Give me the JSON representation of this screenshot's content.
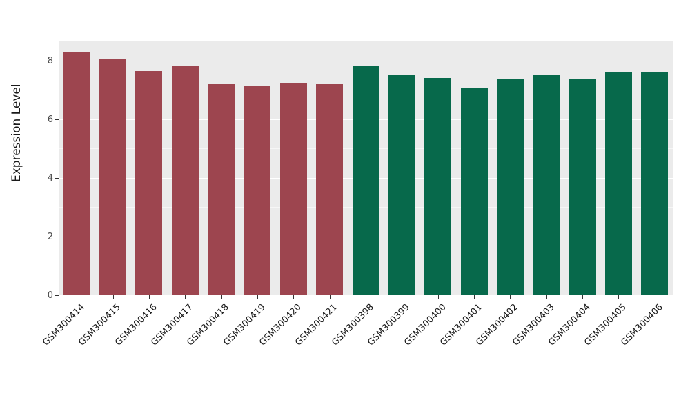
{
  "figure": {
    "background": "#ffffff"
  },
  "chart_data": {
    "type": "bar",
    "title": "",
    "xlabel": "",
    "ylabel": "Expression Level",
    "ylim": [
      0,
      8.65
    ],
    "yticks_major": [
      0,
      2,
      4,
      6,
      8
    ],
    "yticks_minor": [
      1,
      3,
      5,
      7
    ],
    "grid": true,
    "legend_position": "none",
    "panel_bg": "#ebebeb",
    "grid_color": "#ffffff",
    "categories": [
      "GSM300414",
      "GSM300415",
      "GSM300416",
      "GSM300417",
      "GSM300418",
      "GSM300419",
      "GSM300420",
      "GSM300421",
      "GSM300398",
      "GSM300399",
      "GSM300400",
      "GSM300401",
      "GSM300402",
      "GSM300403",
      "GSM300404",
      "GSM300405",
      "GSM300406"
    ],
    "values": [
      8.3,
      8.05,
      7.65,
      7.8,
      7.2,
      7.15,
      7.25,
      7.2,
      7.8,
      7.5,
      7.4,
      7.05,
      7.35,
      7.5,
      7.35,
      7.6,
      7.6
    ],
    "groups": [
      "group1",
      "group1",
      "group1",
      "group1",
      "group1",
      "group1",
      "group1",
      "group1",
      "group2",
      "group2",
      "group2",
      "group2",
      "group2",
      "group2",
      "group2",
      "group2",
      "group2"
    ],
    "group_colors": {
      "group1": "#9d454f",
      "group2": "#07694b"
    }
  }
}
